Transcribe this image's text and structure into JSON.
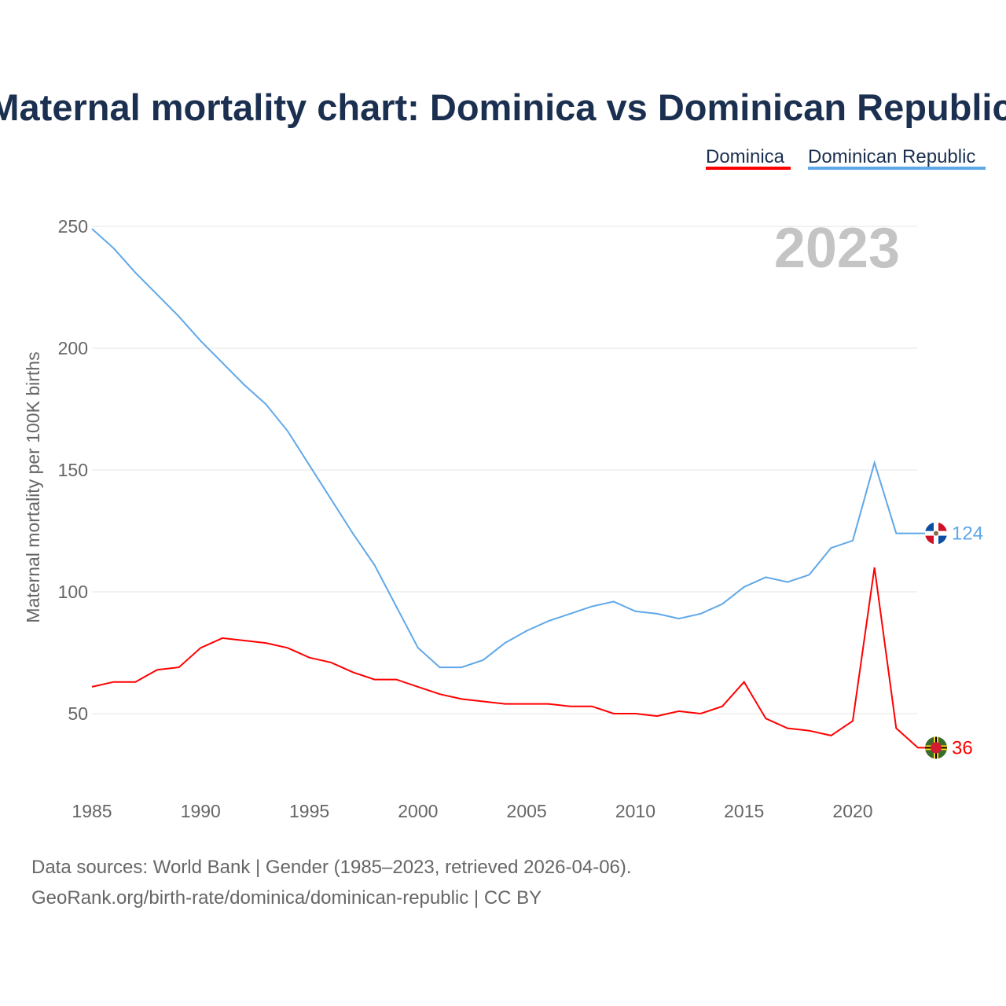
{
  "chart_data": {
    "type": "line",
    "title": "Maternal mortality chart: Dominica vs Dominican Republic",
    "xlabel": "",
    "ylabel": "Maternal mortality per 100K births",
    "year_label": "2023",
    "xlim": [
      1985,
      2023
    ],
    "ylim": [
      20,
      262
    ],
    "x_ticks": [
      1985,
      1990,
      1995,
      2000,
      2005,
      2010,
      2015,
      2020
    ],
    "y_ticks": [
      50,
      100,
      150,
      200,
      250
    ],
    "grid": true,
    "legend_position": "top-right",
    "x": [
      1985,
      1986,
      1987,
      1988,
      1989,
      1990,
      1991,
      1992,
      1993,
      1994,
      1995,
      1996,
      1997,
      1998,
      1999,
      2000,
      2001,
      2002,
      2003,
      2004,
      2005,
      2006,
      2007,
      2008,
      2009,
      2010,
      2011,
      2012,
      2013,
      2014,
      2015,
      2016,
      2017,
      2018,
      2019,
      2020,
      2021,
      2022,
      2023
    ],
    "series": [
      {
        "name": "Dominica",
        "color": "#ff0000",
        "end_label": "36",
        "flag": "dominica-flag-icon",
        "values": [
          61,
          63,
          63,
          68,
          69,
          77,
          81,
          80,
          79,
          77,
          73,
          71,
          67,
          64,
          64,
          61,
          58,
          56,
          55,
          54,
          54,
          54,
          53,
          53,
          50,
          50,
          49,
          51,
          50,
          53,
          63,
          48,
          44,
          43,
          41,
          47,
          110,
          44,
          36
        ]
      },
      {
        "name": "Dominican Republic",
        "color": "#5fa8e8",
        "end_label": "124",
        "flag": "dominican-republic-flag-icon",
        "values": [
          249,
          241,
          231,
          222,
          213,
          203,
          194,
          185,
          177,
          166,
          152,
          138,
          124,
          111,
          94,
          77,
          69,
          69,
          72,
          79,
          84,
          88,
          91,
          94,
          96,
          92,
          91,
          89,
          91,
          95,
          102,
          106,
          104,
          107,
          118,
          121,
          153,
          124,
          124
        ]
      }
    ]
  },
  "footer": {
    "line1": "Data sources: World Bank | Gender (1985–2023, retrieved 2026-04-06).",
    "line2": "GeoRank.org/birth-rate/dominica/dominican-republic | CC BY"
  }
}
